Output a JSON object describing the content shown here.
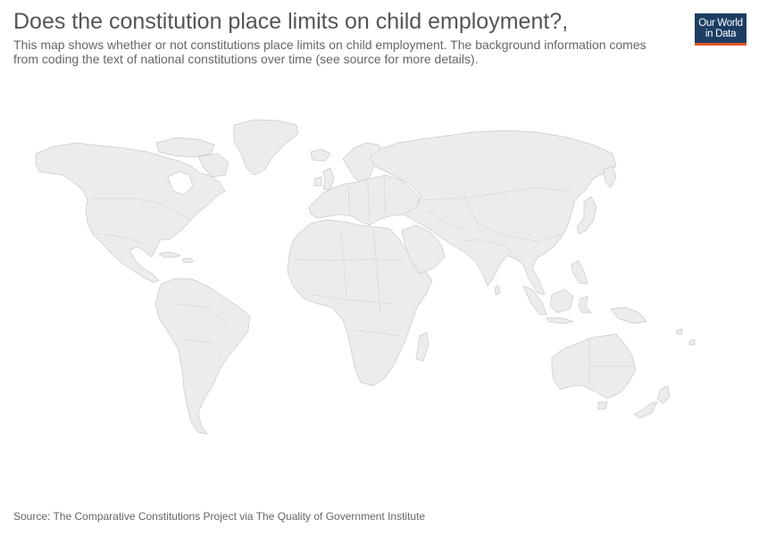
{
  "header": {
    "title": "Does the constitution place limits on child employment?,",
    "subtitle": "This map shows whether or not constitutions place limits on child employment. The background information comes from coding the text of national constitutions over time (see source for more details)."
  },
  "logo": {
    "line1": "Our World",
    "line2": "in Data",
    "background": "#1d3d63",
    "accent": "#e1562a"
  },
  "map": {
    "land_color": "#ececec",
    "border_color": "#c9c9c9"
  },
  "footer": {
    "source": "Source: The Comparative Constitutions Project via The Quality of Government Institute"
  }
}
